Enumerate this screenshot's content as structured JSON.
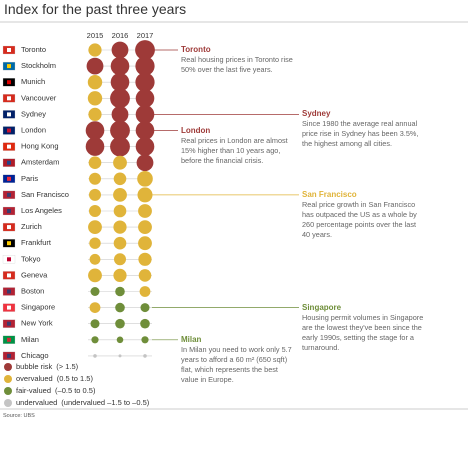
{
  "chart_data": {
    "type": "bubble-matrix",
    "title": "Index for the past three years",
    "columns": [
      "2015",
      "2016",
      "2017"
    ],
    "rows": [
      "Toronto",
      "Stockholm",
      "Munich",
      "Vancouver",
      "Sydney",
      "London",
      "Hong Kong",
      "Amsterdam",
      "Paris",
      "San Francisco",
      "Los Angeles",
      "Zurich",
      "Frankfurt",
      "Tokyo",
      "Geneva",
      "Boston",
      "Singapore",
      "New York",
      "Milan",
      "Chicago"
    ],
    "values": [
      [
        1.0,
        1.6,
        2.1
      ],
      [
        1.6,
        1.9,
        2.0
      ],
      [
        1.2,
        1.9,
        2.0
      ],
      [
        1.2,
        2.1,
        1.9
      ],
      [
        1.0,
        1.6,
        1.9
      ],
      [
        1.9,
        2.1,
        1.9
      ],
      [
        1.9,
        2.1,
        1.9
      ],
      [
        0.9,
        1.1,
        1.6
      ],
      [
        0.8,
        0.9,
        1.4
      ],
      [
        0.8,
        1.1,
        1.3
      ],
      [
        0.8,
        0.9,
        1.1
      ],
      [
        1.1,
        1.0,
        1.1
      ],
      [
        0.7,
        0.9,
        1.1
      ],
      [
        0.6,
        0.8,
        1.0
      ],
      [
        1.1,
        1.0,
        0.9
      ],
      [
        0.3,
        0.4,
        0.6
      ],
      [
        0.6,
        0.4,
        0.3
      ],
      [
        0.3,
        0.4,
        0.4
      ],
      [
        0.0,
        -0.1,
        0.0
      ],
      [
        -0.6,
        -0.7,
        -0.6
      ]
    ],
    "legend": [
      {
        "label": "bubble risk",
        "range": "(> 1.5)",
        "color": "#9e3a38",
        "min": 1.5
      },
      {
        "label": "overvalued",
        "range": "(0.5 to 1.5)",
        "color": "#e0b43a",
        "min": 0.5
      },
      {
        "label": "fair-valued",
        "range": "(–0.5 to 0.5)",
        "color": "#6f8e3a",
        "min": -0.5
      },
      {
        "label": "undervalued",
        "range": "(undervalued –1.5 to –0.5)",
        "color": "#c4c4c4",
        "min": -1.5
      }
    ],
    "annotations": [
      {
        "title": "Toronto",
        "text": "Real housing prices in Toronto rise 50% over the last five years."
      },
      {
        "title": "Sydney",
        "text": "Since 1980 the average real annual price rise in Sydney has been 3.5%, the highest among all cities."
      },
      {
        "title": "London",
        "text": "Real prices in London are almost 15% higher than 10 years ago, before the financial crisis."
      },
      {
        "title": "San Francisco",
        "text": "Real price growth in San Francisco has outpaced the US as a whole by 260 percentage points over the last 40 years."
      },
      {
        "title": "Singapore",
        "text": "Housing permit volumes in Singapore are the lowest they've been since the early 1990s, setting the stage for a turnaround."
      },
      {
        "title": "Milan",
        "text": "In Milan you need to work only 5.7 years to afford a 60 m² (650 sqft) flat, which represents the best value in Europe."
      }
    ],
    "source": "Source: UBS"
  }
}
